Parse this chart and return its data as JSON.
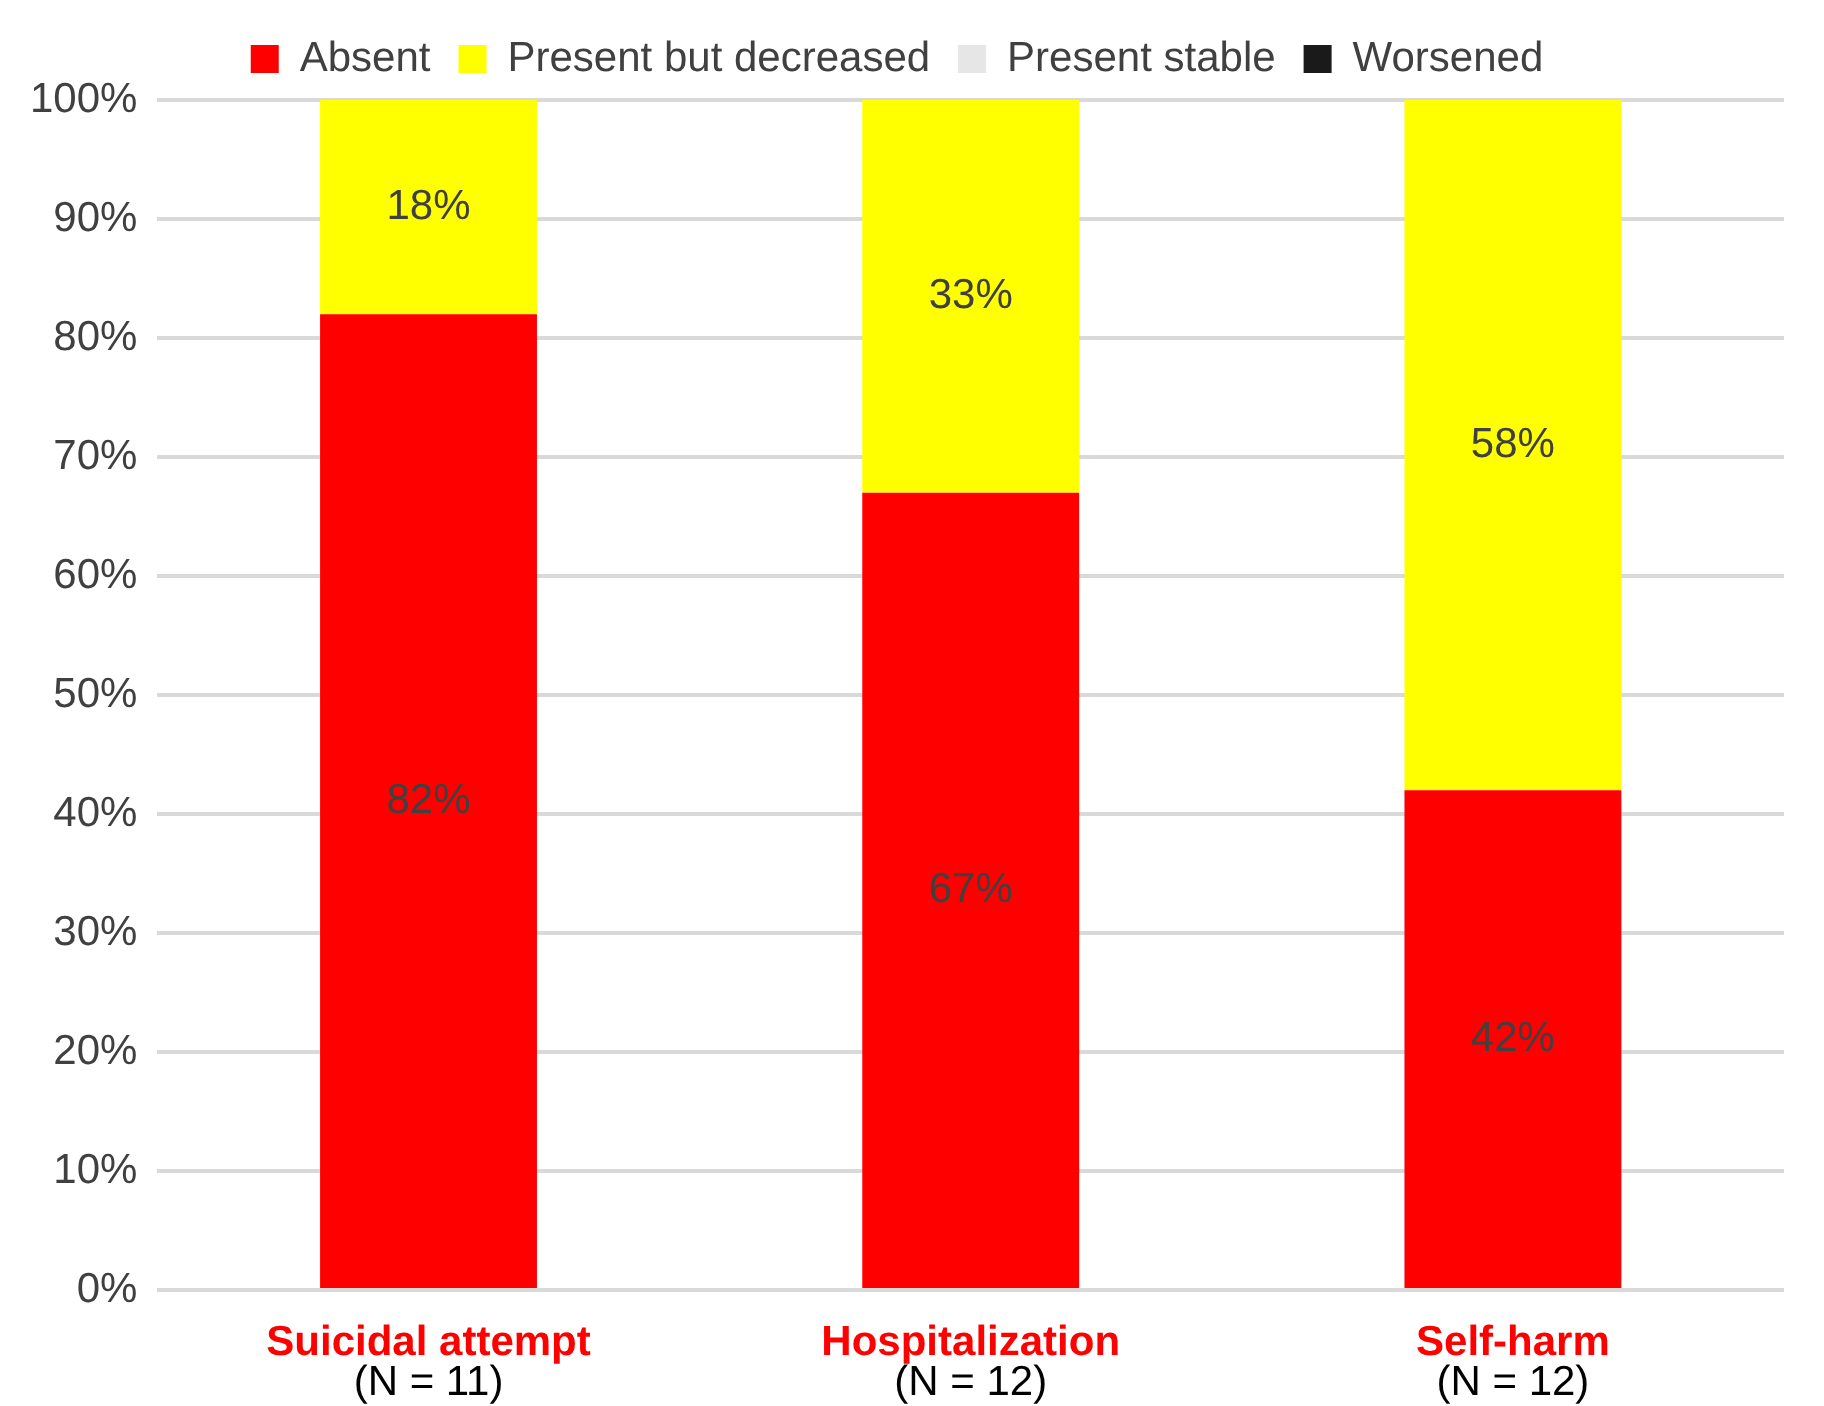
{
  "chart_data": {
    "type": "bar",
    "stacked": true,
    "categories": [
      "Suicidal attempt\n(N = 11)",
      "Hospitalization\n(N = 12)",
      "Self-harm\n(N = 12)"
    ],
    "series": [
      {
        "name": "Absent",
        "color": "#ff0000",
        "values": [
          82,
          67,
          42
        ],
        "value_labels": [
          "82%",
          "67%",
          "42%"
        ]
      },
      {
        "name": "Present but decreased",
        "color": "#ffff00",
        "values": [
          18,
          33,
          58
        ],
        "value_labels": [
          "18%",
          "33%",
          "58%"
        ]
      },
      {
        "name": "Present stable",
        "color": "#e6e6e6",
        "values": [
          0,
          0,
          0
        ]
      },
      {
        "name": "Worsened",
        "color": "#1a1a1a",
        "values": [
          0,
          0,
          0
        ]
      }
    ],
    "ylim": [
      0,
      100
    ],
    "yticks": [
      {
        "value": 0,
        "label": "0%"
      },
      {
        "value": 10,
        "label": "10%"
      },
      {
        "value": 20,
        "label": "20%"
      },
      {
        "value": 30,
        "label": "30%"
      },
      {
        "value": 40,
        "label": "40%"
      },
      {
        "value": 50,
        "label": "50%"
      },
      {
        "value": 60,
        "label": "60%"
      },
      {
        "value": 70,
        "label": "70%"
      },
      {
        "value": 80,
        "label": "80%"
      },
      {
        "value": 90,
        "label": "90%"
      },
      {
        "value": 100,
        "label": "100%"
      }
    ],
    "grid": "y",
    "legend": "top"
  }
}
